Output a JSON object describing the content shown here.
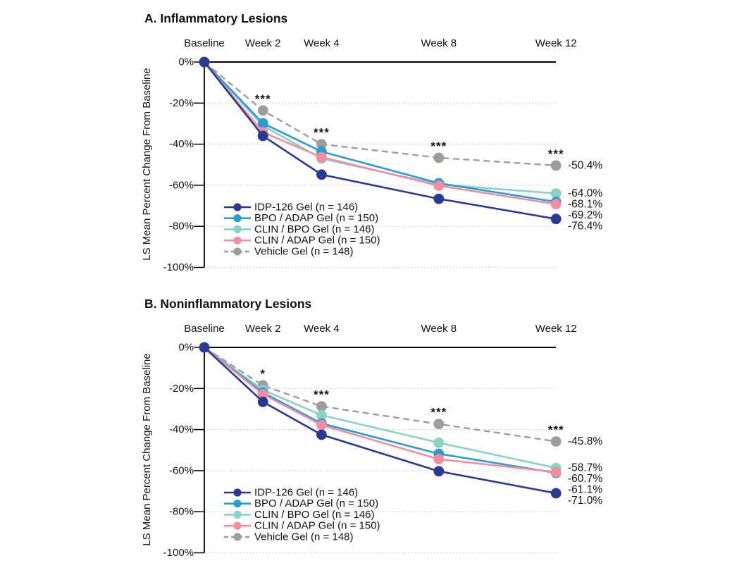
{
  "figure": {
    "background": "#ffffff",
    "text_color": "#111111",
    "grid_color": "#cccccc",
    "axis_color": "#000000"
  },
  "chart_data": [
    {
      "type": "line",
      "title": "A. Inflammatory Lesions",
      "x_categories": [
        "Baseline",
        "Week 2",
        "Week 4",
        "Week 8",
        "Week 12"
      ],
      "x_weeks": [
        0,
        2,
        4,
        8,
        12
      ],
      "ylabel": "LS Mean Percent Change From Baseline",
      "ylim": [
        0,
        -100
      ],
      "yticks": [
        {
          "value": 0,
          "label": "0%"
        },
        {
          "value": -20,
          "label": "-20%"
        },
        {
          "value": -40,
          "label": "-40%"
        },
        {
          "value": -60,
          "label": "-60%"
        },
        {
          "value": -80,
          "label": "-80%"
        },
        {
          "value": -100,
          "label": "-100%"
        }
      ],
      "grid": "horizontal-dotted",
      "legend_position": "inside-lower-left",
      "series": [
        {
          "name": "IDP-126 Gel (n = 146)",
          "color": "#2b3990",
          "dashed": false,
          "values": [
            0,
            -36.0,
            -54.8,
            -66.6,
            -76.4
          ],
          "end_label": "-76.4%"
        },
        {
          "name": "BPO / ADAP Gel (n = 150)",
          "color": "#2a9cd2",
          "dashed": false,
          "values": [
            0,
            -29.8,
            -43.6,
            -59.0,
            -68.1
          ],
          "end_label": "-68.1%"
        },
        {
          "name": "CLIN / BPO Gel (n = 146)",
          "color": "#8ad2c6",
          "dashed": false,
          "values": [
            0,
            -31.0,
            -47.0,
            -59.6,
            -64.0
          ],
          "end_label": "-64.0%"
        },
        {
          "name": "CLIN / ADAP Gel (n = 150)",
          "color": "#f48ca0",
          "dashed": false,
          "values": [
            0,
            -34.2,
            -46.3,
            -60.2,
            -69.2
          ],
          "end_label": "-69.2%"
        },
        {
          "name": "Vehicle Gel (n = 148)",
          "color": "#9d9d9f",
          "dashed": true,
          "values": [
            0,
            -23.6,
            -40.0,
            -46.6,
            -50.4
          ],
          "end_label": "-50.4%"
        }
      ],
      "significance": [
        {
          "x_index": 1,
          "marker": "***"
        },
        {
          "x_index": 2,
          "marker": "***"
        },
        {
          "x_index": 3,
          "marker": "***"
        },
        {
          "x_index": 4,
          "marker": "***"
        }
      ]
    },
    {
      "type": "line",
      "title": "B. Noninflammatory Lesions",
      "x_categories": [
        "Baseline",
        "Week 2",
        "Week 4",
        "Week 8",
        "Week 12"
      ],
      "x_weeks": [
        0,
        2,
        4,
        8,
        12
      ],
      "ylabel": "LS Mean Percent Change From Baseline",
      "ylim": [
        0,
        -100
      ],
      "yticks": [
        {
          "value": 0,
          "label": "0%"
        },
        {
          "value": -20,
          "label": "-20%"
        },
        {
          "value": -40,
          "label": "-40%"
        },
        {
          "value": -60,
          "label": "-60%"
        },
        {
          "value": -80,
          "label": "-80%"
        },
        {
          "value": -100,
          "label": "-100%"
        }
      ],
      "grid": "horizontal-dotted",
      "legend_position": "inside-lower-left",
      "series": [
        {
          "name": "IDP-126 Gel (n = 146)",
          "color": "#2b3990",
          "dashed": false,
          "values": [
            0,
            -26.5,
            -42.5,
            -60.3,
            -71.0
          ],
          "end_label": "-71.0%"
        },
        {
          "name": "BPO / ADAP Gel (n = 150)",
          "color": "#2a9cd2",
          "dashed": false,
          "values": [
            0,
            -22.0,
            -37.0,
            -51.8,
            -61.1
          ],
          "end_label": "-61.1%"
        },
        {
          "name": "CLIN / BPO Gel (n = 146)",
          "color": "#8ad2c6",
          "dashed": false,
          "values": [
            0,
            -20.7,
            -33.0,
            -46.4,
            -58.7
          ],
          "end_label": "-58.7%"
        },
        {
          "name": "CLIN / ADAP Gel (n = 150)",
          "color": "#f48ca0",
          "dashed": false,
          "values": [
            0,
            -22.8,
            -37.8,
            -54.4,
            -60.7
          ],
          "end_label": "-60.7%"
        },
        {
          "name": "Vehicle Gel (n = 148)",
          "color": "#9d9d9f",
          "dashed": true,
          "values": [
            0,
            -18.5,
            -28.7,
            -37.3,
            -45.8
          ],
          "end_label": "-45.8%"
        }
      ],
      "significance": [
        {
          "x_index": 1,
          "marker": "*"
        },
        {
          "x_index": 2,
          "marker": "***"
        },
        {
          "x_index": 3,
          "marker": "***"
        },
        {
          "x_index": 4,
          "marker": "***"
        }
      ]
    }
  ]
}
